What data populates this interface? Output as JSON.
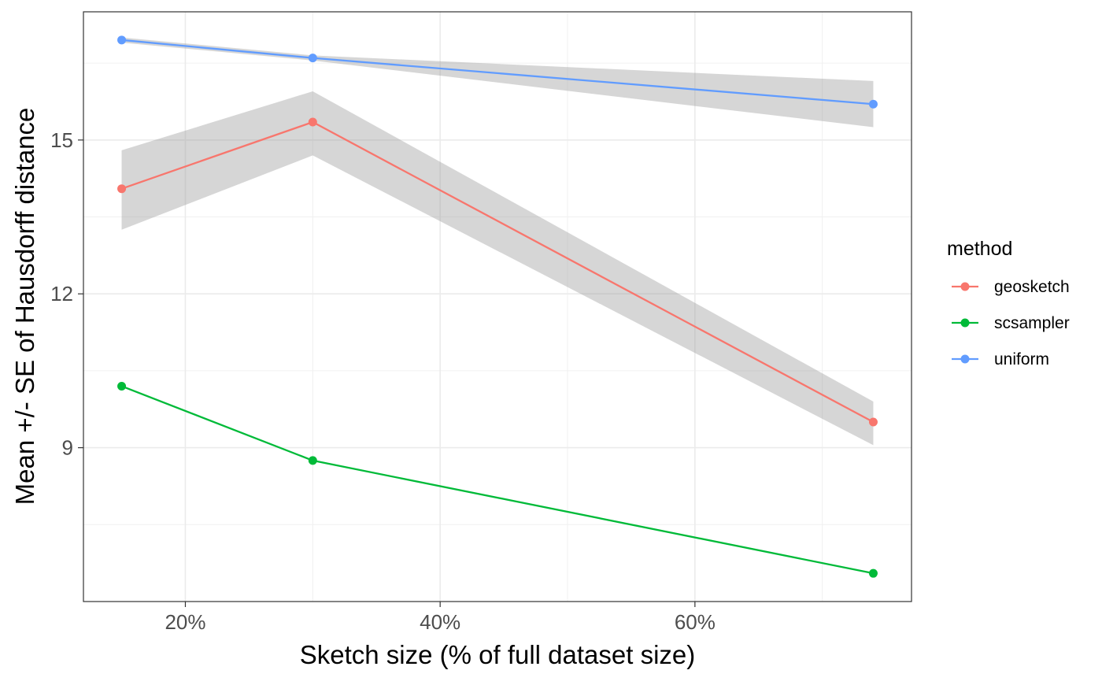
{
  "chart_data": {
    "type": "line",
    "title": "",
    "xlabel": "Sketch size (% of full dataset size)",
    "ylabel": "Mean +/- SE of Hausdorff distance",
    "xlim": [
      12,
      77
    ],
    "ylim": [
      6.0,
      17.5
    ],
    "x_ticks": [
      20,
      40,
      60
    ],
    "x_tick_labels": [
      "20%",
      "40%",
      "60%"
    ],
    "y_ticks": [
      9,
      12,
      15
    ],
    "y_tick_labels": [
      "9",
      "12",
      "15"
    ],
    "grid": true,
    "legend_title": "method",
    "legend_position": "right",
    "series": [
      {
        "name": "geosketch",
        "color": "#F8766D",
        "x": [
          15,
          30,
          74
        ],
        "values": [
          14.05,
          15.35,
          9.5
        ],
        "se_lower": [
          13.25,
          14.7,
          9.05
        ],
        "se_upper": [
          14.8,
          15.95,
          9.9
        ]
      },
      {
        "name": "scsampler",
        "color": "#00BA38",
        "x": [
          15,
          30,
          74
        ],
        "values": [
          10.2,
          8.75,
          6.55
        ],
        "se_lower": [
          10.2,
          8.75,
          6.55
        ],
        "se_upper": [
          10.2,
          8.75,
          6.55
        ]
      },
      {
        "name": "uniform",
        "color": "#619CFF",
        "x": [
          15,
          30,
          74
        ],
        "values": [
          16.95,
          16.6,
          15.7
        ],
        "se_lower": [
          16.9,
          16.55,
          15.25
        ],
        "se_upper": [
          17.0,
          16.65,
          16.15
        ]
      }
    ]
  }
}
